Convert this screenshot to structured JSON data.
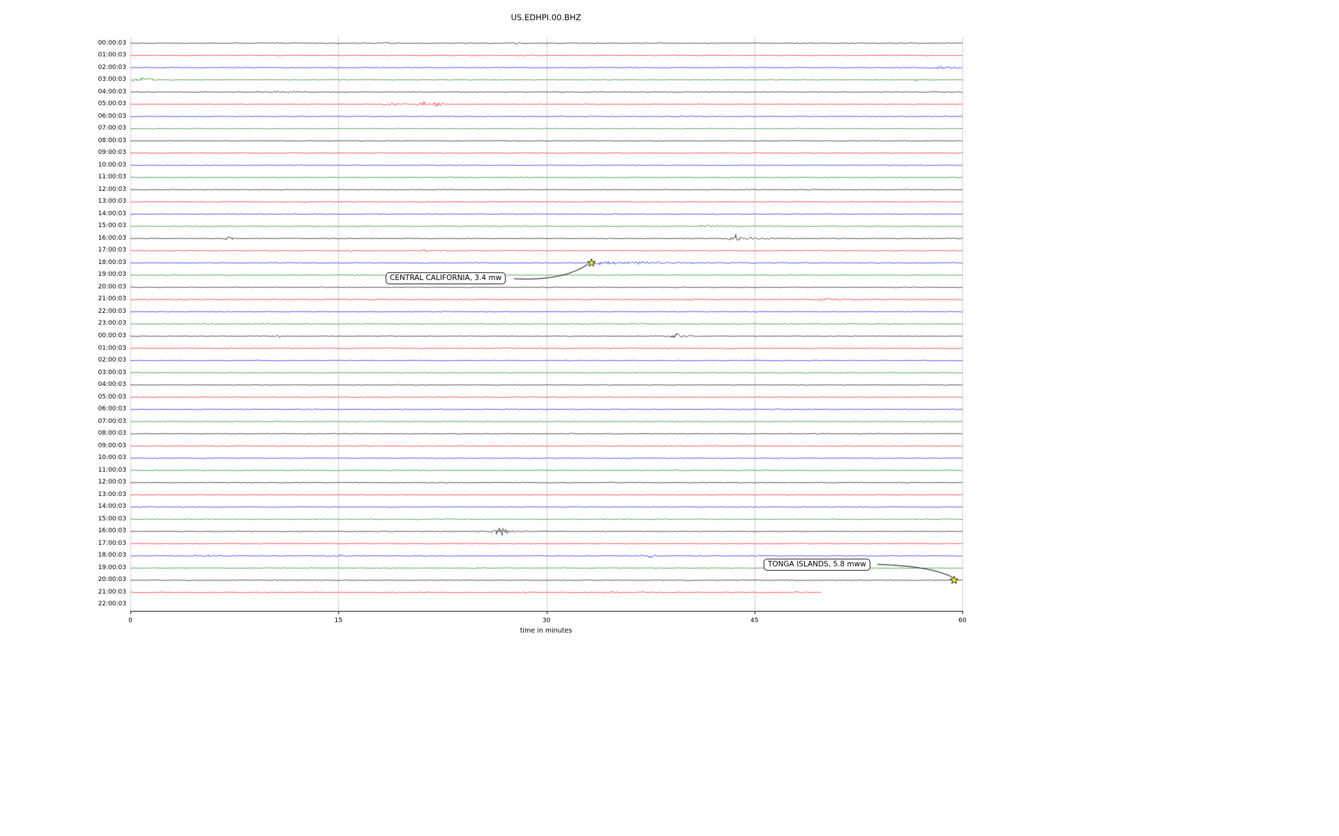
{
  "chart_data": {
    "type": "line",
    "subtype": "seismogram-dayplot",
    "title": "US.EDHPI.00.BHZ",
    "x_axis": {
      "label": "time in minutes",
      "ticks": [
        0,
        15,
        30,
        45,
        60
      ],
      "range": [
        0,
        60
      ]
    },
    "grid": "vertical-gridlines-on",
    "trace_colors_cycle": [
      "#000000",
      "#ff0000",
      "#0000ff",
      "#008000"
    ],
    "rows": [
      {
        "label": "00:00:03",
        "bursts": [
          {
            "m": 18.5,
            "a": 1.6,
            "w": 0.9
          },
          {
            "m": 28.1,
            "a": 1.6,
            "w": 0.9
          }
        ]
      },
      {
        "label": "01:00:03"
      },
      {
        "label": "02:00:03",
        "bursts": [
          {
            "m": 58.6,
            "a": 3,
            "w": 1.4
          }
        ]
      },
      {
        "label": "03:00:03",
        "bursts": [
          {
            "m": 0.4,
            "a": 6,
            "w": 0.25
          },
          {
            "m": 1.0,
            "a": 8,
            "w": 0.3
          },
          {
            "m": 1.5,
            "a": 3,
            "w": 0.4
          },
          {
            "m": 56.6,
            "a": 7,
            "w": 0.12
          }
        ]
      },
      {
        "label": "04:00:03",
        "bursts": [
          {
            "m": 11.7,
            "a": 4,
            "w": 0.3
          },
          {
            "m": 10.5,
            "a": 1.5,
            "w": 0.9
          }
        ]
      },
      {
        "label": "05:00:03",
        "bursts": [
          {
            "m": 18.8,
            "a": 3.5,
            "w": 0.7
          },
          {
            "m": 21.1,
            "a": 6,
            "w": 0.3
          },
          {
            "m": 22.2,
            "a": 8,
            "w": 0.3
          },
          {
            "m": 21.5,
            "a": 1.5,
            "w": 1.5
          }
        ]
      },
      {
        "label": "06:00:03"
      },
      {
        "label": "07:00:03"
      },
      {
        "label": "08:00:03",
        "amp": 0.95
      },
      {
        "label": "09:00:03"
      },
      {
        "label": "10:00:03"
      },
      {
        "label": "11:00:03"
      },
      {
        "label": "12:00:03"
      },
      {
        "label": "13:00:03",
        "bursts": [
          {
            "m": 24.8,
            "a": 2,
            "w": 0.15
          }
        ]
      },
      {
        "label": "14:00:03"
      },
      {
        "label": "15:00:03",
        "bursts": [
          {
            "m": 42.0,
            "a": 3.2,
            "w": 1.1
          }
        ]
      },
      {
        "label": "16:00:03",
        "bursts": [
          {
            "m": 7.2,
            "a": 4,
            "w": 0.45
          },
          {
            "m": 43.6,
            "a": 9,
            "w": 0.3
          },
          {
            "m": 44.8,
            "a": 3,
            "w": 1.2
          }
        ]
      },
      {
        "label": "17:00:03",
        "bursts": [
          {
            "m": 16.0,
            "a": 2.5,
            "w": 0.25
          },
          {
            "m": 21.3,
            "a": 3.5,
            "w": 0.3
          }
        ]
      },
      {
        "label": "18:00:03",
        "bursts": [
          {
            "m": 10.6,
            "a": 1.4,
            "w": 0.8
          },
          {
            "m": 33.25,
            "a": 6.5,
            "w": 1.2,
            "t": "d"
          },
          {
            "m": 33.6,
            "a": 2.5,
            "w": 8,
            "t": "d"
          },
          {
            "m": 36.2,
            "a": 2,
            "w": 1
          }
        ]
      },
      {
        "label": "19:00:03",
        "bursts": [
          {
            "m": 21,
            "a": 1.3,
            "w": 1.2
          }
        ]
      },
      {
        "label": "20:00:03"
      },
      {
        "label": "21:00:03",
        "amp": 1.4,
        "bursts": [
          {
            "m": 1.2,
            "a": 2,
            "w": 1
          },
          {
            "m": 24.8,
            "a": 2.5,
            "w": 0.2
          },
          {
            "m": 40.6,
            "a": 1.8,
            "w": 0.6
          },
          {
            "m": 50.3,
            "a": 2.8,
            "w": 1.1
          }
        ]
      },
      {
        "label": "22:00:03",
        "bursts": [
          {
            "m": 22.8,
            "a": 1.3,
            "w": 0.5
          }
        ]
      },
      {
        "label": "23:00:03",
        "bursts": [
          {
            "m": 36.7,
            "a": 1.8,
            "w": 0.7
          },
          {
            "m": 44.2,
            "a": 1.6,
            "w": 0.5
          }
        ]
      },
      {
        "label": "00:00:03",
        "bursts": [
          {
            "m": 10.7,
            "a": 3.5,
            "w": 0.2
          },
          {
            "m": 39.3,
            "a": 7.5,
            "w": 0.35
          },
          {
            "m": 39.6,
            "a": 2.5,
            "w": 1.1
          }
        ]
      },
      {
        "label": "01:00:03"
      },
      {
        "label": "02:00:03"
      },
      {
        "label": "03:00:03"
      },
      {
        "label": "04:00:03"
      },
      {
        "label": "05:00:03"
      },
      {
        "label": "06:00:03"
      },
      {
        "label": "07:00:03"
      },
      {
        "label": "08:00:03",
        "bursts": [
          {
            "m": 31.8,
            "a": 1.8,
            "w": 0.15
          }
        ]
      },
      {
        "label": "09:00:03"
      },
      {
        "label": "10:00:03"
      },
      {
        "label": "11:00:03"
      },
      {
        "label": "12:00:03"
      },
      {
        "label": "13:00:03"
      },
      {
        "label": "14:00:03",
        "bursts": [
          {
            "m": 44.9,
            "a": 1.3,
            "w": 0.4
          }
        ]
      },
      {
        "label": "15:00:03"
      },
      {
        "label": "16:00:03",
        "bursts": [
          {
            "m": 26.7,
            "a": 7.5,
            "w": 0.5
          },
          {
            "m": 27.2,
            "a": 2.5,
            "w": 1.2
          }
        ]
      },
      {
        "label": "17:00:03",
        "bursts": [
          {
            "m": 12.5,
            "a": 2.2,
            "w": 0.15
          }
        ]
      },
      {
        "label": "18:00:03",
        "bursts": [
          {
            "m": 5.7,
            "a": 2.2,
            "w": 1.3
          },
          {
            "m": 15.2,
            "a": 2.2,
            "w": 0.9
          },
          {
            "m": 37.4,
            "a": 3.5,
            "w": 0.6
          },
          {
            "m": 45.4,
            "a": 3.5,
            "w": 0.15
          }
        ]
      },
      {
        "label": "19:00:03",
        "bursts": [
          {
            "m": 25.3,
            "a": 1.6,
            "w": 0.6
          }
        ]
      },
      {
        "label": "20:00:03",
        "bursts": [
          {
            "m": 43.1,
            "a": 1.8,
            "w": 0.3
          },
          {
            "m": 59.4,
            "a": 2.5,
            "w": 0.8,
            "t": "d"
          }
        ]
      },
      {
        "label": "21:00:03",
        "end_minute": 49.8,
        "bursts": [
          {
            "m": 9.5,
            "a": 1.8,
            "w": 0.7
          },
          {
            "m": 19,
            "a": 1.4,
            "w": 0.6
          },
          {
            "m": 28.6,
            "a": 2.2,
            "w": 0.4
          },
          {
            "m": 34.8,
            "a": 2.2,
            "w": 0.4
          },
          {
            "m": 36.9,
            "a": 1.8,
            "w": 0.4
          },
          {
            "m": 47.9,
            "a": 1.8,
            "w": 0.6
          }
        ]
      },
      {
        "label": "22:00:03",
        "end_minute": 0
      }
    ],
    "annotations": [
      {
        "text": "CENTRAL CALIFORNIA, 3.4 mw",
        "row_index": 18,
        "minute": 33.25,
        "marker": "yellow-star"
      },
      {
        "text": "TONGA ISLANDS, 5.8 mww",
        "row_index": 44,
        "minute": 59.4,
        "marker": "yellow-star"
      }
    ]
  }
}
